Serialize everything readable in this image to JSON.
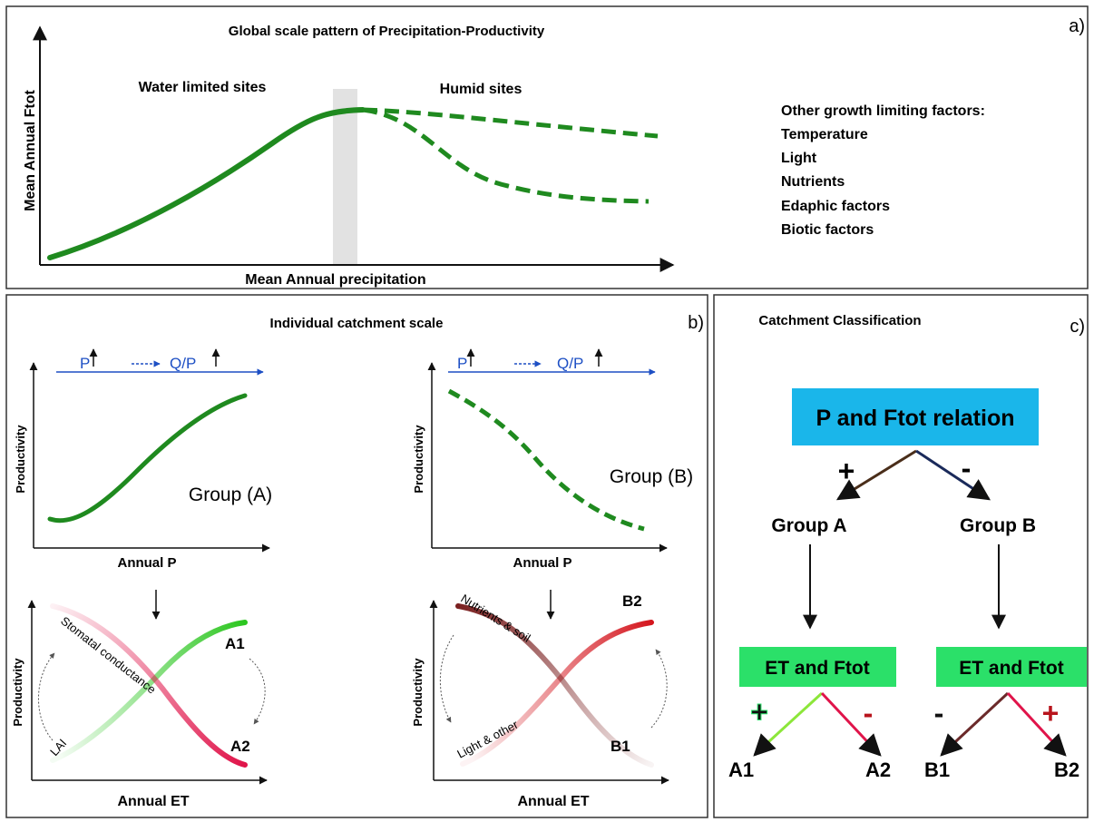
{
  "panel_a": {
    "title": "Global scale pattern of Precipitation-Productivity",
    "corner_label": "a)",
    "y_axis_label": "Mean Annual Ftot",
    "x_axis_label": "Mean Annual precipitation",
    "region_left": "Water limited sites",
    "region_right": "Humid sites",
    "factors_heading": "Other growth limiting factors:",
    "factors": [
      "Temperature",
      "Light",
      "Nutrients",
      "Edaphic factors",
      "Biotic factors"
    ]
  },
  "panel_b": {
    "title": "Individual catchment scale",
    "corner_label": "b)",
    "flow_p": "P",
    "flow_qp": "Q/P",
    "left": {
      "y_label": "Productivity",
      "x_label": "Annual P",
      "group_label": "Group (A)",
      "lower_y_label": "Productivity",
      "lower_x_label": "Annual ET",
      "curve_down_label": "Stomatal conductance",
      "curve_up_label": "LAI",
      "end_high": "A1",
      "end_low": "A2"
    },
    "right": {
      "y_label": "Productivity",
      "x_label": "Annual P",
      "group_label": "Group (B)",
      "lower_y_label": "Productivity",
      "lower_x_label": "Annual ET",
      "curve_down_label": "Nutrients & soil",
      "curve_up_label": "Light & other",
      "end_high": "B2",
      "end_low": "B1"
    }
  },
  "panel_c": {
    "title": "Catchment Classification",
    "corner_label": "c)",
    "root": "P and Ftot relation",
    "plus": "+",
    "minus": "-",
    "group_a": "Group A",
    "group_b": "Group B",
    "et_a": "ET and Ftot",
    "et_b": "ET and Ftot",
    "a_plus": "+",
    "a_minus": "-",
    "b_minus": "-",
    "b_plus": "+",
    "a1": "A1",
    "a2": "A2",
    "b1": "B1",
    "b2": "B2"
  },
  "colors": {
    "green_curve": "#1f8a1f",
    "flow_blue": "#1d4fc4",
    "root_box": "#1ab6ea",
    "et_box": "#2be069",
    "red": "#e0144a",
    "dark_red": "#b8141c",
    "brown": "#6b2a2a"
  }
}
